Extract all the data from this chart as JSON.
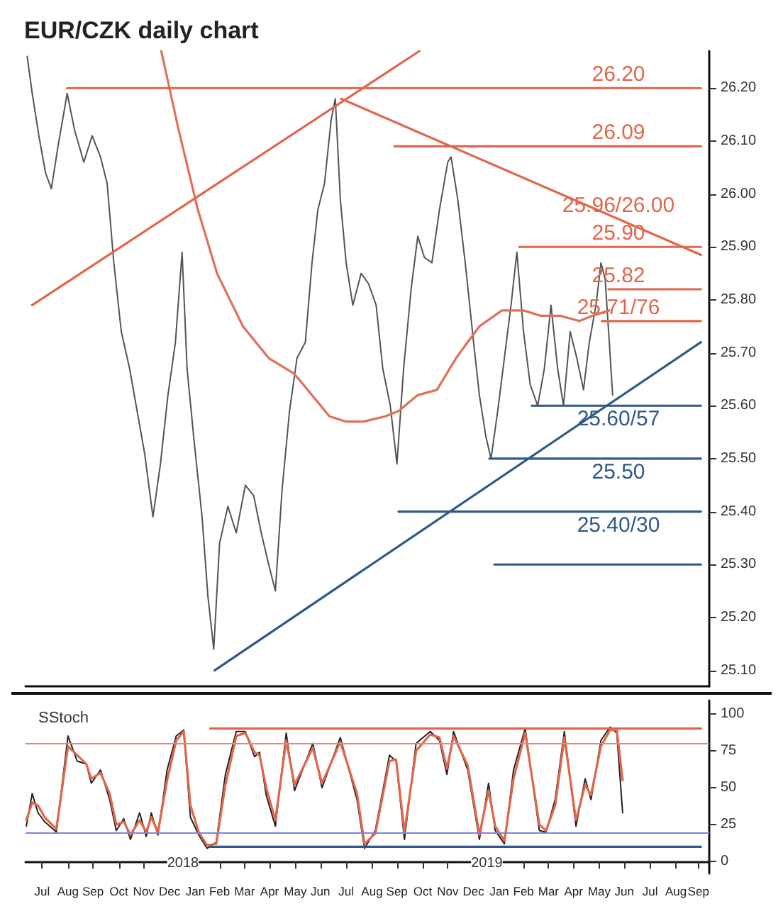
{
  "chart_data": [
    {
      "type": "line",
      "title": "EUR/CZK daily chart",
      "xlim": [
        "2017-06-26",
        "2019-09-25"
      ],
      "ylim": [
        25.07,
        26.27
      ],
      "yticks": [
        {
          "value": 25.1,
          "label": "25.10"
        },
        {
          "value": 25.2,
          "label": "25.20"
        },
        {
          "value": 25.3,
          "label": "25.30"
        },
        {
          "value": 25.4,
          "label": "25.40"
        },
        {
          "value": 25.5,
          "label": "25.50"
        },
        {
          "value": 25.6,
          "label": "25.60"
        },
        {
          "value": 25.7,
          "label": "25.70"
        },
        {
          "value": 25.8,
          "label": "25.80"
        },
        {
          "value": 25.9,
          "label": "25.90"
        },
        {
          "value": 26.0,
          "label": "26.00"
        },
        {
          "value": 26.1,
          "label": "26.10"
        },
        {
          "value": 26.2,
          "label": "26.20"
        }
      ],
      "tick_labels": "y",
      "grid": false,
      "legend": false,
      "series": [
        {
          "color": "#555555",
          "x": [
            "2017-06-28",
            "2017-07-04",
            "2017-07-12",
            "2017-07-20",
            "2017-07-27",
            "2017-08-04",
            "2017-08-15",
            "2017-08-24",
            "2017-09-04",
            "2017-09-14",
            "2017-09-24",
            "2017-10-02",
            "2017-10-10",
            "2017-10-19",
            "2017-10-29",
            "2017-11-07",
            "2017-11-16",
            "2017-11-26",
            "2017-12-05",
            "2017-12-14",
            "2017-12-23",
            "2017-12-31",
            "2018-01-06",
            "2018-01-14",
            "2018-01-24",
            "2018-01-31",
            "2018-02-07",
            "2018-02-14",
            "2018-02-24",
            "2018-03-06",
            "2018-03-17",
            "2018-03-27",
            "2018-04-05",
            "2018-04-14",
            "2018-04-22",
            "2018-04-30",
            "2018-05-09",
            "2018-05-18",
            "2018-05-28",
            "2018-06-05",
            "2018-06-12",
            "2018-06-20",
            "2018-06-28",
            "2018-07-03",
            "2018-07-09",
            "2018-07-16",
            "2018-07-24",
            "2018-08-03",
            "2018-08-12",
            "2018-08-21",
            "2018-08-29",
            "2018-09-07",
            "2018-09-15",
            "2018-09-23",
            "2018-10-02",
            "2018-10-10",
            "2018-10-18",
            "2018-10-27",
            "2018-11-05",
            "2018-11-15",
            "2018-11-19",
            "2018-11-27",
            "2018-12-06",
            "2018-12-16",
            "2018-12-23",
            "2018-12-31",
            "2019-01-06",
            "2019-01-14",
            "2019-01-22",
            "2019-01-30",
            "2019-02-06",
            "2019-02-14",
            "2019-02-22",
            "2019-03-03",
            "2019-03-11",
            "2019-03-19",
            "2019-03-27",
            "2019-04-03",
            "2019-04-11",
            "2019-04-19",
            "2019-04-27",
            "2019-05-04",
            "2019-05-12",
            "2019-05-18",
            "2019-05-23",
            "2019-05-28",
            "2019-06-01"
          ],
          "values": [
            26.26,
            26.19,
            26.11,
            26.04,
            26.01,
            26.09,
            26.19,
            26.12,
            26.06,
            26.11,
            26.07,
            26.02,
            25.87,
            25.74,
            25.67,
            25.59,
            25.51,
            25.39,
            25.49,
            25.62,
            25.72,
            25.89,
            25.67,
            25.54,
            25.39,
            25.24,
            25.14,
            25.34,
            25.41,
            25.36,
            25.45,
            25.43,
            25.36,
            25.3,
            25.25,
            25.44,
            25.59,
            25.69,
            25.72,
            25.87,
            25.97,
            26.02,
            26.14,
            26.18,
            25.99,
            25.87,
            25.79,
            25.85,
            25.83,
            25.79,
            25.67,
            25.6,
            25.49,
            25.67,
            25.82,
            25.92,
            25.88,
            25.87,
            25.97,
            26.06,
            26.07,
            25.99,
            25.87,
            25.72,
            25.62,
            25.54,
            25.5,
            25.59,
            25.69,
            25.79,
            25.89,
            25.74,
            25.64,
            25.6,
            25.67,
            25.79,
            25.67,
            25.6,
            25.74,
            25.69,
            25.63,
            25.72,
            25.79,
            25.87,
            25.84,
            25.72,
            25.62
          ]
        },
        {
          "color": "#e0705a",
          "x": [
            "2017-12-06",
            "2017-12-27",
            "2018-01-19",
            "2018-02-11",
            "2018-03-14",
            "2018-04-14",
            "2018-05-15",
            "2018-06-26",
            "2018-07-16",
            "2018-08-06",
            "2018-09-01",
            "2018-09-17",
            "2018-10-10",
            "2018-11-02",
            "2018-11-25",
            "2018-12-23",
            "2019-01-19",
            "2019-02-14",
            "2019-03-06",
            "2019-03-30",
            "2019-04-22",
            "2019-05-08",
            "2019-05-28"
          ],
          "values": [
            26.27,
            26.12,
            25.97,
            25.85,
            25.75,
            25.69,
            25.66,
            25.58,
            25.57,
            25.57,
            25.58,
            25.59,
            25.62,
            25.63,
            25.69,
            25.75,
            25.78,
            25.78,
            25.77,
            25.77,
            25.76,
            25.77,
            25.78
          ]
        },
        {
          "color": "#e0674b",
          "x": [
            "2017-07-04",
            "2018-10-12"
          ],
          "values": [
            25.79,
            26.27
          ]
        },
        {
          "name": "25.96/26.00",
          "color": "#e0674b",
          "x": [
            "2018-07-10",
            "2019-09-15"
          ],
          "values": [
            26.18,
            25.885
          ]
        },
        {
          "name": "26.20",
          "color": "#e0674b",
          "x": [
            "2017-08-15",
            "2019-09-15"
          ],
          "values": [
            26.2,
            26.2
          ]
        },
        {
          "name": "26.09",
          "color": "#e0674b",
          "x": [
            "2018-09-12",
            "2019-09-15"
          ],
          "values": [
            26.09,
            26.09
          ]
        },
        {
          "name": "25.90",
          "color": "#e0674b",
          "x": [
            "2019-02-09",
            "2019-09-15"
          ],
          "values": [
            25.9,
            25.9
          ]
        },
        {
          "name": "25.82",
          "color": "#e0674b",
          "x": [
            "2019-05-27",
            "2019-09-15"
          ],
          "values": [
            25.82,
            25.82
          ]
        },
        {
          "name": "25.71/76",
          "color": "#e0674b",
          "x": [
            "2019-05-19",
            "2019-09-15"
          ],
          "values": [
            25.76,
            25.76
          ]
        },
        {
          "color": "#2e5a8a",
          "x": [
            "2018-02-08",
            "2019-09-15"
          ],
          "values": [
            25.1,
            25.72
          ]
        },
        {
          "name": "25.60/57",
          "color": "#2e5a8a",
          "x": [
            "2019-02-24",
            "2019-09-15"
          ],
          "values": [
            25.6,
            25.6
          ]
        },
        {
          "name": "25.50",
          "color": "#2e5a8a",
          "x": [
            "2019-01-04",
            "2019-09-15"
          ],
          "values": [
            25.5,
            25.5
          ]
        },
        {
          "name": "25.40/30",
          "color": "#2e5a8a",
          "x": [
            "2018-09-17",
            "2019-09-15"
          ],
          "values": [
            25.4,
            25.4
          ]
        },
        {
          "color": "#2e5a8a",
          "x": [
            "2019-01-10",
            "2019-09-15"
          ],
          "values": [
            25.3,
            25.3
          ]
        }
      ]
    },
    {
      "type": "line",
      "title": "SStoch",
      "xlim": [
        "2017-06-26",
        "2019-09-25"
      ],
      "ylim": [
        -8,
        109
      ],
      "yticks": [
        0,
        25,
        50,
        75,
        100
      ],
      "grid": false,
      "legend": false,
      "x2lim": [
        "2017-06-26",
        "2019-09-25"
      ],
      "x2ticks": [
        {
          "value": "2018-01-01",
          "label": "2018"
        },
        {
          "value": "2019-01-01",
          "label": "2019"
        }
      ],
      "xticks": [
        {
          "value": "2017-07-16",
          "label": "Jul"
        },
        {
          "value": "2017-08-16",
          "label": "Aug"
        },
        {
          "value": "2017-09-15",
          "label": "Sep"
        },
        {
          "value": "2017-10-16",
          "label": "Oct"
        },
        {
          "value": "2017-11-15",
          "label": "Nov"
        },
        {
          "value": "2017-12-16",
          "label": "Dec"
        },
        {
          "value": "2018-01-16",
          "label": "Jan"
        },
        {
          "value": "2018-02-14",
          "label": "Feb"
        },
        {
          "value": "2018-03-16",
          "label": "Mar"
        },
        {
          "value": "2018-04-15",
          "label": "Apr"
        },
        {
          "value": "2018-05-16",
          "label": "May"
        },
        {
          "value": "2018-06-15",
          "label": "Jun"
        },
        {
          "value": "2018-07-16",
          "label": "Jul"
        },
        {
          "value": "2018-08-16",
          "label": "Aug"
        },
        {
          "value": "2018-09-15",
          "label": "Sep"
        },
        {
          "value": "2018-10-16",
          "label": "Oct"
        },
        {
          "value": "2018-11-15",
          "label": "Nov"
        },
        {
          "value": "2018-12-16",
          "label": "Dec"
        },
        {
          "value": "2019-01-16",
          "label": "Jan"
        },
        {
          "value": "2019-02-14",
          "label": "Feb"
        },
        {
          "value": "2019-03-16",
          "label": "Mar"
        },
        {
          "value": "2019-04-15",
          "label": "Apr"
        },
        {
          "value": "2019-05-16",
          "label": "May"
        },
        {
          "value": "2019-06-15",
          "label": "Jun"
        },
        {
          "value": "2019-07-16",
          "label": "Jul"
        },
        {
          "value": "2019-08-16",
          "label": "Aug"
        },
        {
          "value": "2019-09-12",
          "label": "Sep"
        }
      ],
      "ref_lines": [
        {
          "axis": "y",
          "value": 80,
          "color": "#e08a7a"
        },
        {
          "axis": "y",
          "value": 20,
          "color": "#7f86d0"
        }
      ],
      "x": [
        "2017-06-27",
        "2017-07-04",
        "2017-07-11",
        "2017-07-19",
        "2017-08-02",
        "2017-08-16",
        "2017-08-27",
        "2017-09-07",
        "2017-09-13",
        "2017-09-24",
        "2017-10-05",
        "2017-10-13",
        "2017-10-22",
        "2017-10-30",
        "2017-11-10",
        "2017-11-18",
        "2017-11-24",
        "2017-12-02",
        "2017-12-13",
        "2017-12-24",
        "2018-01-02",
        "2018-01-10",
        "2018-01-20",
        "2018-01-30",
        "2018-02-10",
        "2018-02-21",
        "2018-03-06",
        "2018-03-17",
        "2018-03-28",
        "2018-04-03",
        "2018-04-11",
        "2018-04-22",
        "2018-05-05",
        "2018-05-15",
        "2018-06-06",
        "2018-06-17",
        "2018-07-09",
        "2018-07-29",
        "2018-08-07",
        "2018-08-20",
        "2018-09-06",
        "2018-09-14",
        "2018-09-24",
        "2018-10-08",
        "2018-10-25",
        "2018-11-05",
        "2018-11-14",
        "2018-11-22",
        "2018-12-09",
        "2018-12-23",
        "2019-01-03",
        "2019-01-11",
        "2019-01-22",
        "2019-02-02",
        "2019-02-16",
        "2019-03-05",
        "2019-03-13",
        "2019-03-24",
        "2019-04-04",
        "2019-04-18",
        "2019-04-29",
        "2019-05-06",
        "2019-05-18",
        "2019-05-29",
        "2019-06-06",
        "2019-06-13"
      ],
      "series": [
        {
          "color": "#222222",
          "values": [
            24,
            46,
            33,
            27,
            20,
            85,
            68,
            66,
            53,
            62,
            42,
            21,
            29,
            15,
            33,
            17,
            33,
            18,
            62,
            85,
            89,
            30,
            18,
            9,
            13,
            59,
            88,
            88,
            71,
            74,
            45,
            24,
            87,
            48,
            80,
            50,
            84,
            42,
            9,
            21,
            72,
            68,
            15,
            80,
            88,
            82,
            59,
            88,
            62,
            15,
            53,
            21,
            12,
            62,
            90,
            21,
            20,
            42,
            88,
            24,
            56,
            42,
            82,
            91,
            87,
            33
          ]
        },
        {
          "color": "#e0674b",
          "values": [
            28,
            40,
            38,
            30,
            22,
            78,
            72,
            66,
            56,
            60,
            46,
            25,
            27,
            18,
            28,
            20,
            30,
            20,
            55,
            82,
            88,
            38,
            20,
            11,
            12,
            52,
            85,
            87,
            74,
            72,
            50,
            28,
            82,
            52,
            77,
            53,
            81,
            46,
            12,
            19,
            68,
            69,
            20,
            75,
            86,
            84,
            63,
            85,
            65,
            18,
            48,
            24,
            14,
            56,
            87,
            25,
            21,
            38,
            84,
            28,
            52,
            45,
            78,
            89,
            89,
            55
          ]
        },
        {
          "color": "#e0674b",
          "x": [
            "2018-02-03",
            "2019-09-15"
          ],
          "values": [
            90,
            90
          ]
        },
        {
          "color": "#2e5a8a",
          "x": [
            "2018-02-03",
            "2019-09-15"
          ],
          "values": [
            10,
            10
          ]
        }
      ]
    }
  ]
}
